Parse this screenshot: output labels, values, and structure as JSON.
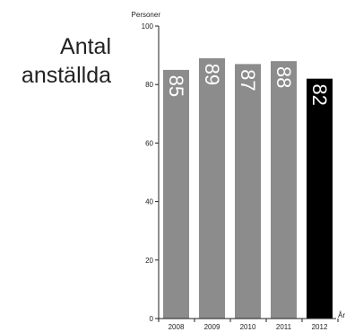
{
  "chart_data": {
    "type": "bar",
    "title_lines": [
      "Antal",
      "anställda"
    ],
    "ylabel": "Personer",
    "xlabel": "År",
    "categories": [
      "2008",
      "2009",
      "2010",
      "2011",
      "2012"
    ],
    "values": [
      85,
      89,
      87,
      88,
      82
    ],
    "value_labels": [
      "85",
      "89",
      "87",
      "88",
      "82"
    ],
    "ylim": [
      0,
      100
    ],
    "yticks": [
      "0",
      "20",
      "40",
      "60",
      "80",
      "100"
    ],
    "grid": false,
    "legend": "none",
    "colors": {
      "bar": "#8c8c8c",
      "highlight_bar": "#000000",
      "value_label": "#ffffff",
      "axis": "#222222"
    },
    "highlight_index": 4
  }
}
